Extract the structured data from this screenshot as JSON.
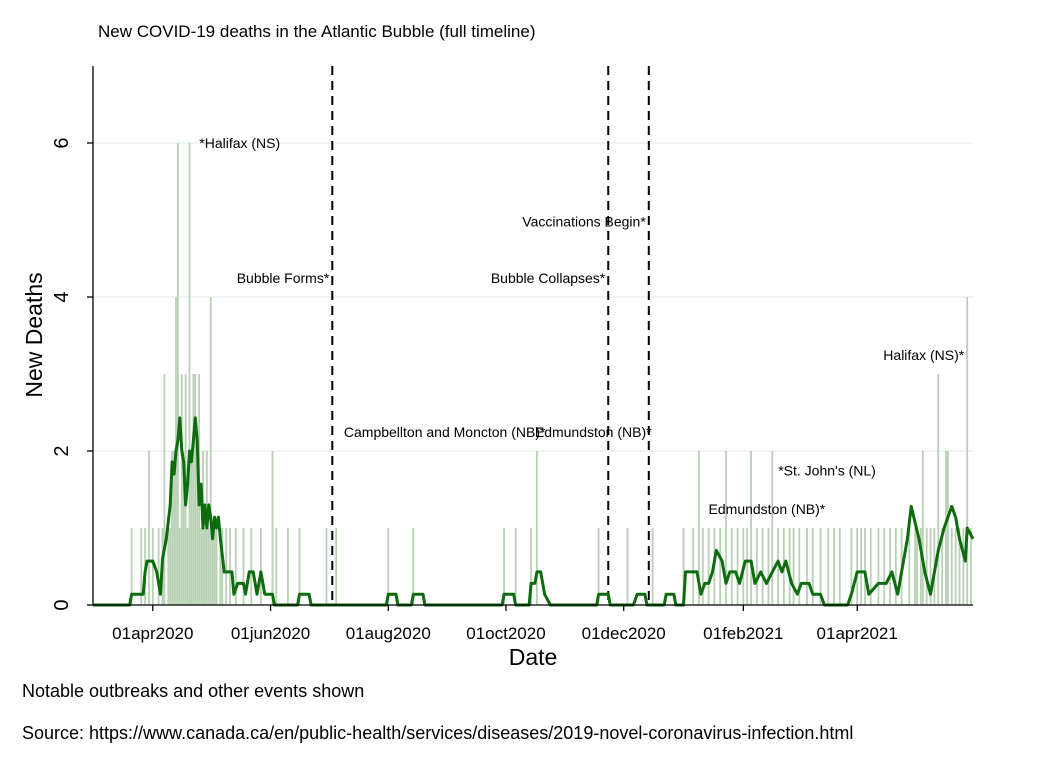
{
  "chart_data": {
    "type": "bar+line",
    "title": "New COVID-19 deaths in the Atlantic Bubble (full timeline)",
    "xlabel": "Date",
    "ylabel": "New Deaths",
    "start_date": "2020-03-01",
    "end_date": "2021-05-31",
    "ylim": [
      0,
      7
    ],
    "yticks": [
      0,
      2,
      4,
      6
    ],
    "xticks": [
      {
        "date": "2020-04-01",
        "label": "01apr2020"
      },
      {
        "date": "2020-06-01",
        "label": "01jun2020"
      },
      {
        "date": "2020-08-01",
        "label": "01aug2020"
      },
      {
        "date": "2020-10-01",
        "label": "01oct2020"
      },
      {
        "date": "2020-12-01",
        "label": "01dec2020"
      },
      {
        "date": "2021-02-01",
        "label": "01feb2021"
      },
      {
        "date": "2021-04-01",
        "label": "01apr2021"
      }
    ],
    "daily_deaths": [
      [
        "2020-03-21",
        1
      ],
      [
        "2020-03-26",
        1
      ],
      [
        "2020-03-28",
        1
      ],
      [
        "2020-03-30",
        2
      ],
      [
        "2020-04-01",
        1
      ],
      [
        "2020-04-04",
        1
      ],
      [
        "2020-04-06",
        1
      ],
      [
        "2020-04-07",
        3
      ],
      [
        "2020-04-09",
        1
      ],
      [
        "2020-04-10",
        1
      ],
      [
        "2020-04-11",
        2
      ],
      [
        "2020-04-12",
        2
      ],
      [
        "2020-04-13",
        4
      ],
      [
        "2020-04-14",
        6
      ],
      [
        "2020-04-15",
        1
      ],
      [
        "2020-04-16",
        3
      ],
      [
        "2020-04-17",
        2
      ],
      [
        "2020-04-18",
        3
      ],
      [
        "2020-04-19",
        1
      ],
      [
        "2020-04-20",
        6
      ],
      [
        "2020-04-21",
        2
      ],
      [
        "2020-04-22",
        3
      ],
      [
        "2020-04-23",
        3
      ],
      [
        "2020-04-24",
        2
      ],
      [
        "2020-04-25",
        3
      ],
      [
        "2020-04-26",
        1
      ],
      [
        "2020-04-27",
        2
      ],
      [
        "2020-04-28",
        1
      ],
      [
        "2020-04-29",
        2
      ],
      [
        "2020-04-30",
        1
      ],
      [
        "2020-05-01",
        4
      ],
      [
        "2020-05-02",
        1
      ],
      [
        "2020-05-03",
        1
      ],
      [
        "2020-05-04",
        1
      ],
      [
        "2020-05-06",
        1
      ],
      [
        "2020-05-07",
        1
      ],
      [
        "2020-05-09",
        1
      ],
      [
        "2020-05-11",
        1
      ],
      [
        "2020-05-14",
        1
      ],
      [
        "2020-05-18",
        1
      ],
      [
        "2020-05-22",
        1
      ],
      [
        "2020-05-27",
        1
      ],
      [
        "2020-06-02",
        2
      ],
      [
        "2020-06-04",
        1
      ],
      [
        "2020-06-10",
        1
      ],
      [
        "2020-06-16",
        1
      ],
      [
        "2020-06-30",
        1
      ],
      [
        "2020-07-05",
        1
      ],
      [
        "2020-08-01",
        1
      ],
      [
        "2020-08-14",
        1
      ],
      [
        "2020-09-30",
        1
      ],
      [
        "2020-10-06",
        1
      ],
      [
        "2020-10-14",
        1
      ],
      [
        "2020-10-17",
        2
      ],
      [
        "2020-11-18",
        1
      ],
      [
        "2020-12-03",
        1
      ],
      [
        "2020-12-16",
        1
      ],
      [
        "2021-01-01",
        1
      ],
      [
        "2021-01-06",
        1
      ],
      [
        "2021-01-09",
        2
      ],
      [
        "2021-01-11",
        1
      ],
      [
        "2021-01-14",
        1
      ],
      [
        "2021-01-17",
        1
      ],
      [
        "2021-01-20",
        1
      ],
      [
        "2021-01-23",
        2
      ],
      [
        "2021-01-26",
        1
      ],
      [
        "2021-01-29",
        1
      ],
      [
        "2021-02-01",
        1
      ],
      [
        "2021-02-03",
        1
      ],
      [
        "2021-02-05",
        2
      ],
      [
        "2021-02-08",
        1
      ],
      [
        "2021-02-11",
        1
      ],
      [
        "2021-02-14",
        1
      ],
      [
        "2021-02-16",
        2
      ],
      [
        "2021-02-19",
        1
      ],
      [
        "2021-02-22",
        1
      ],
      [
        "2021-02-25",
        1
      ],
      [
        "2021-02-27",
        1
      ],
      [
        "2021-03-02",
        1
      ],
      [
        "2021-03-06",
        1
      ],
      [
        "2021-03-09",
        1
      ],
      [
        "2021-03-13",
        1
      ],
      [
        "2021-03-17",
        1
      ],
      [
        "2021-03-20",
        1
      ],
      [
        "2021-03-23",
        1
      ],
      [
        "2021-03-29",
        1
      ],
      [
        "2021-04-01",
        1
      ],
      [
        "2021-04-03",
        1
      ],
      [
        "2021-04-05",
        1
      ],
      [
        "2021-04-08",
        1
      ],
      [
        "2021-04-12",
        1
      ],
      [
        "2021-04-15",
        1
      ],
      [
        "2021-04-18",
        1
      ],
      [
        "2021-04-21",
        1
      ],
      [
        "2021-04-24",
        1
      ],
      [
        "2021-04-28",
        1
      ],
      [
        "2021-05-01",
        1
      ],
      [
        "2021-05-02",
        1
      ],
      [
        "2021-05-04",
        1
      ],
      [
        "2021-05-05",
        2
      ],
      [
        "2021-05-07",
        1
      ],
      [
        "2021-05-09",
        1
      ],
      [
        "2021-05-11",
        1
      ],
      [
        "2021-05-13",
        3
      ],
      [
        "2021-05-15",
        1
      ],
      [
        "2021-05-17",
        2
      ],
      [
        "2021-05-18",
        2
      ],
      [
        "2021-05-20",
        1
      ],
      [
        "2021-05-22",
        1
      ],
      [
        "2021-05-24",
        1
      ],
      [
        "2021-05-26",
        1
      ],
      [
        "2021-05-28",
        4
      ],
      [
        "2021-05-30",
        1
      ]
    ],
    "smoothed_line": [
      [
        "2020-03-01",
        0
      ],
      [
        "2020-03-20",
        0
      ],
      [
        "2020-03-21",
        0.14
      ],
      [
        "2020-03-27",
        0.14
      ],
      [
        "2020-03-28",
        0.43
      ],
      [
        "2020-03-29",
        0.57
      ],
      [
        "2020-04-01",
        0.57
      ],
      [
        "2020-04-03",
        0.43
      ],
      [
        "2020-04-05",
        0.14
      ],
      [
        "2020-04-06",
        0.6
      ],
      [
        "2020-04-08",
        0.86
      ],
      [
        "2020-04-10",
        1.3
      ],
      [
        "2020-04-11",
        1.86
      ],
      [
        "2020-04-12",
        1.7
      ],
      [
        "2020-04-13",
        2.0
      ],
      [
        "2020-04-14",
        2.14
      ],
      [
        "2020-04-15",
        2.43
      ],
      [
        "2020-04-16",
        2.0
      ],
      [
        "2020-04-17",
        1.86
      ],
      [
        "2020-04-18",
        1.3
      ],
      [
        "2020-04-19",
        1.57
      ],
      [
        "2020-04-20",
        2.0
      ],
      [
        "2020-04-21",
        1.86
      ],
      [
        "2020-04-22",
        2.14
      ],
      [
        "2020-04-23",
        2.43
      ],
      [
        "2020-04-24",
        2.14
      ],
      [
        "2020-04-25",
        1.3
      ],
      [
        "2020-04-26",
        1.57
      ],
      [
        "2020-04-27",
        1.0
      ],
      [
        "2020-04-28",
        1.3
      ],
      [
        "2020-04-29",
        1.0
      ],
      [
        "2020-04-30",
        1.3
      ],
      [
        "2020-05-01",
        1.14
      ],
      [
        "2020-05-02",
        0.86
      ],
      [
        "2020-05-03",
        1.14
      ],
      [
        "2020-05-04",
        1.0
      ],
      [
        "2020-05-05",
        1.14
      ],
      [
        "2020-05-06",
        0.86
      ],
      [
        "2020-05-08",
        0.43
      ],
      [
        "2020-05-12",
        0.43
      ],
      [
        "2020-05-13",
        0.14
      ],
      [
        "2020-05-15",
        0.28
      ],
      [
        "2020-05-18",
        0.28
      ],
      [
        "2020-05-19",
        0.14
      ],
      [
        "2020-05-21",
        0.43
      ],
      [
        "2020-05-23",
        0.43
      ],
      [
        "2020-05-25",
        0.14
      ],
      [
        "2020-05-27",
        0.43
      ],
      [
        "2020-05-29",
        0.14
      ],
      [
        "2020-06-02",
        0.14
      ],
      [
        "2020-06-03",
        0
      ],
      [
        "2020-06-15",
        0
      ],
      [
        "2020-06-16",
        0.14
      ],
      [
        "2020-06-21",
        0.14
      ],
      [
        "2020-06-22",
        0
      ],
      [
        "2020-07-31",
        0
      ],
      [
        "2020-08-01",
        0.14
      ],
      [
        "2020-08-05",
        0.14
      ],
      [
        "2020-08-06",
        0
      ],
      [
        "2020-08-13",
        0
      ],
      [
        "2020-08-14",
        0.14
      ],
      [
        "2020-08-19",
        0.14
      ],
      [
        "2020-08-20",
        0
      ],
      [
        "2020-09-29",
        0
      ],
      [
        "2020-09-30",
        0.14
      ],
      [
        "2020-10-05",
        0.14
      ],
      [
        "2020-10-06",
        0
      ],
      [
        "2020-10-13",
        0
      ],
      [
        "2020-10-14",
        0.28
      ],
      [
        "2020-10-16",
        0.28
      ],
      [
        "2020-10-17",
        0.43
      ],
      [
        "2020-10-19",
        0.43
      ],
      [
        "2020-10-21",
        0.14
      ],
      [
        "2020-10-24",
        0
      ],
      [
        "2020-11-17",
        0
      ],
      [
        "2020-11-18",
        0.14
      ],
      [
        "2020-11-23",
        0.14
      ],
      [
        "2020-11-24",
        0
      ],
      [
        "2020-12-06",
        0
      ],
      [
        "2020-12-08",
        0.14
      ],
      [
        "2020-12-12",
        0.14
      ],
      [
        "2020-12-13",
        0
      ],
      [
        "2020-12-22",
        0
      ],
      [
        "2020-12-23",
        0.14
      ],
      [
        "2020-12-27",
        0.14
      ],
      [
        "2020-12-28",
        0
      ],
      [
        "2021-01-01",
        0
      ],
      [
        "2021-01-02",
        0.43
      ],
      [
        "2021-01-08",
        0.43
      ],
      [
        "2021-01-10",
        0.14
      ],
      [
        "2021-01-12",
        0.28
      ],
      [
        "2021-01-14",
        0.28
      ],
      [
        "2021-01-16",
        0.43
      ],
      [
        "2021-01-18",
        0.71
      ],
      [
        "2021-01-21",
        0.57
      ],
      [
        "2021-01-23",
        0.28
      ],
      [
        "2021-01-25",
        0.43
      ],
      [
        "2021-01-28",
        0.43
      ],
      [
        "2021-01-30",
        0.28
      ],
      [
        "2021-02-02",
        0.57
      ],
      [
        "2021-02-05",
        0.57
      ],
      [
        "2021-02-07",
        0.28
      ],
      [
        "2021-02-10",
        0.43
      ],
      [
        "2021-02-13",
        0.28
      ],
      [
        "2021-02-16",
        0.43
      ],
      [
        "2021-02-19",
        0.57
      ],
      [
        "2021-02-21",
        0.43
      ],
      [
        "2021-02-23",
        0.57
      ],
      [
        "2021-02-26",
        0.28
      ],
      [
        "2021-03-01",
        0.14
      ],
      [
        "2021-03-03",
        0.28
      ],
      [
        "2021-03-07",
        0.28
      ],
      [
        "2021-03-09",
        0.14
      ],
      [
        "2021-03-13",
        0.14
      ],
      [
        "2021-03-15",
        0
      ],
      [
        "2021-03-27",
        0
      ],
      [
        "2021-03-29",
        0.14
      ],
      [
        "2021-04-01",
        0.43
      ],
      [
        "2021-04-05",
        0.43
      ],
      [
        "2021-04-07",
        0.14
      ],
      [
        "2021-04-12",
        0.28
      ],
      [
        "2021-04-16",
        0.28
      ],
      [
        "2021-04-19",
        0.43
      ],
      [
        "2021-04-22",
        0.14
      ],
      [
        "2021-04-24",
        0.43
      ],
      [
        "2021-04-27",
        0.86
      ],
      [
        "2021-04-29",
        1.28
      ],
      [
        "2021-05-03",
        0.86
      ],
      [
        "2021-05-06",
        0.43
      ],
      [
        "2021-05-09",
        0.14
      ],
      [
        "2021-05-13",
        0.71
      ],
      [
        "2021-05-16",
        1.0
      ],
      [
        "2021-05-20",
        1.28
      ],
      [
        "2021-05-22",
        1.14
      ],
      [
        "2021-05-24",
        0.86
      ],
      [
        "2021-05-27",
        0.57
      ],
      [
        "2021-05-28",
        1.0
      ],
      [
        "2021-05-31",
        0.86
      ]
    ],
    "event_lines": [
      "2020-07-03",
      "2020-11-23",
      "2020-12-14"
    ],
    "annotations": [
      {
        "text": "*Halifax (NS)",
        "date": "2020-04-23",
        "y": 6.0,
        "anchor": "start"
      },
      {
        "text": "Bubble Forms*",
        "date": "2020-07-03",
        "y": 4.25,
        "anchor": "end"
      },
      {
        "text": "Vaccinations Begin*",
        "date": "2020-12-14",
        "y": 4.98,
        "anchor": "end"
      },
      {
        "text": "Bubble Collapses*",
        "date": "2020-11-23",
        "y": 4.25,
        "anchor": "end"
      },
      {
        "text": "Halifax (NS)*",
        "date": "2021-05-28",
        "y": 3.25,
        "anchor": "end"
      },
      {
        "text": "Campbellton and Moncton (NB)*",
        "date": "2020-10-23",
        "y": 2.25,
        "anchor": "end"
      },
      {
        "text": "Edmundston (NB)*",
        "date": "2020-12-17",
        "y": 2.25,
        "anchor": "end"
      },
      {
        "text": "*St. John's (NL)",
        "date": "2021-02-17",
        "y": 1.75,
        "anchor": "start"
      },
      {
        "text": "Edmundston (NB)*",
        "date": "2021-03-17",
        "y": 1.25,
        "anchor": "end"
      }
    ],
    "colors": {
      "bars": "#b8d1b5",
      "line": "#0e6b0e",
      "grid": "#e3ede6",
      "axis": "#000000"
    }
  },
  "notes": {
    "outbreaks": "Notable outbreaks and other events shown",
    "source": "Source: https://www.canada.ca/en/public-health/services/diseases/2019-novel-coronavirus-infection.html"
  }
}
